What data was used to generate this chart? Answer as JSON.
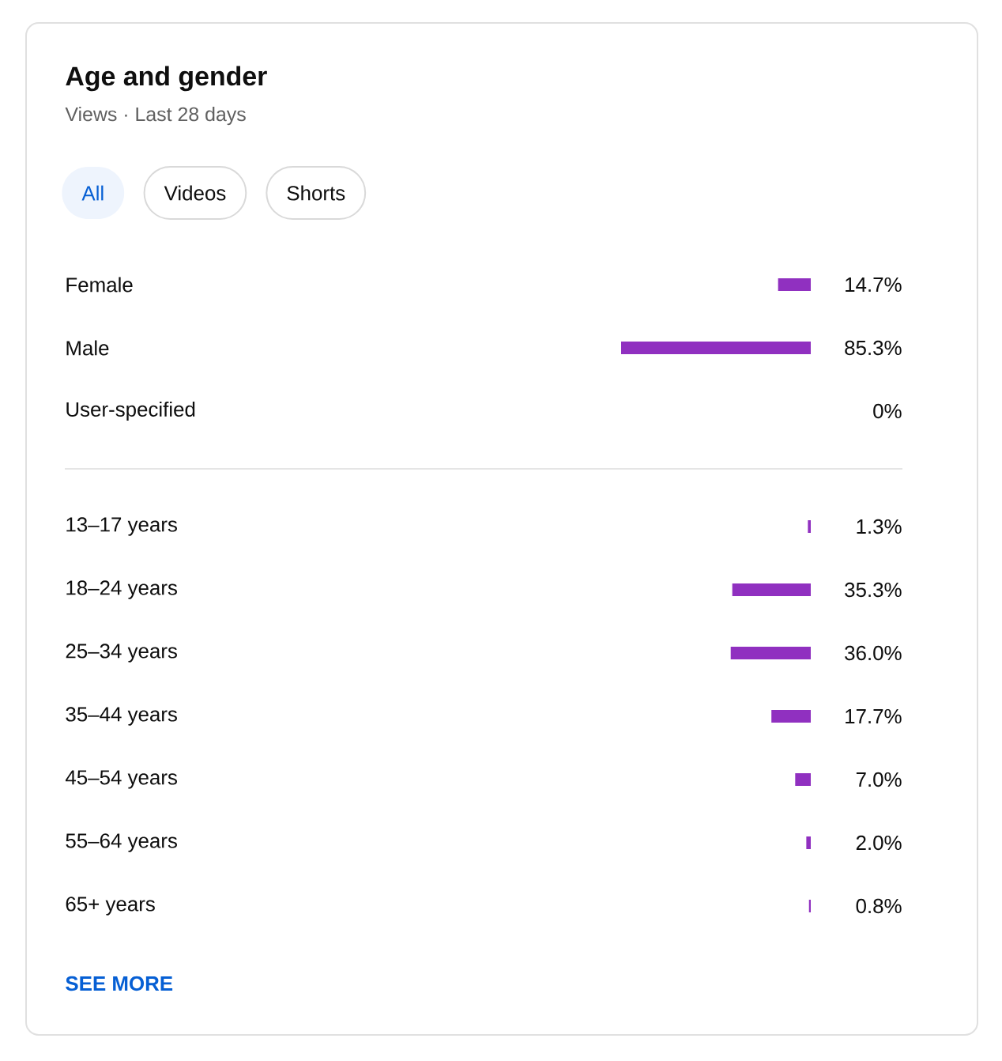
{
  "chart_data": [
    {
      "type": "bar",
      "orientation": "horizontal",
      "title": "Age and gender",
      "subtitle": "Views · Last 28 days",
      "annotations": [
        "All",
        "Videos",
        "Shorts"
      ],
      "categories": [
        "Female",
        "Male",
        "User-specified"
      ],
      "values": [
        14.7,
        85.3,
        0
      ],
      "value_labels": [
        "14.7%",
        "85.3%",
        "0%"
      ],
      "color": "#9030c0"
    },
    {
      "type": "bar",
      "orientation": "horizontal",
      "categories": [
        "13–17 years",
        "18–24 years",
        "25–34 years",
        "35–44 years",
        "45–54 years",
        "55–64 years",
        "65+ years"
      ],
      "values": [
        1.3,
        35.3,
        36.0,
        17.7,
        7.0,
        2.0,
        0.8
      ],
      "value_labels": [
        "1.3%",
        "35.3%",
        "36.0%",
        "17.7%",
        "7.0%",
        "2.0%",
        "0.8%"
      ],
      "color": "#9030c0",
      "annotations": [
        "SEE MORE"
      ]
    }
  ]
}
